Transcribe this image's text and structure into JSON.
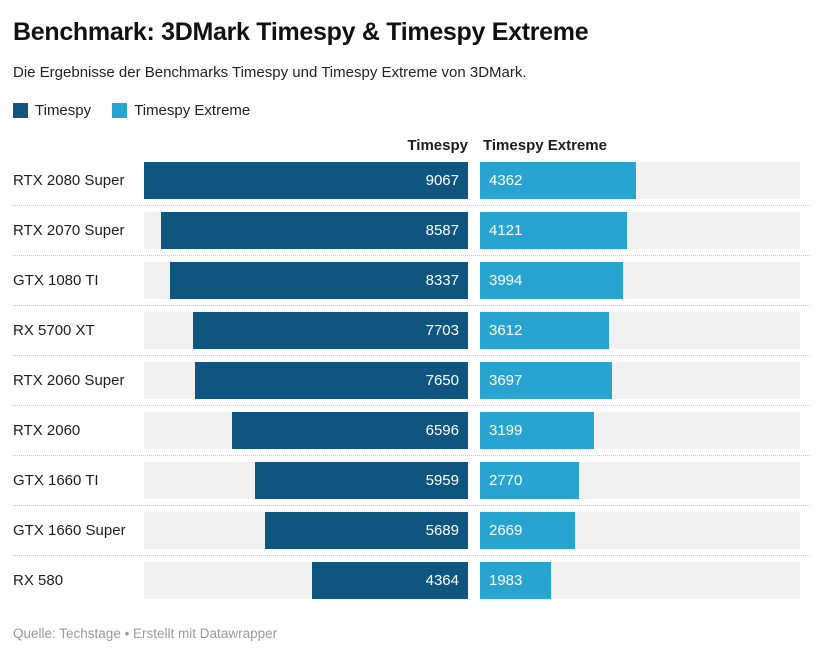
{
  "header": {
    "title": "Benchmark: 3DMark Timespy & Timespy Extreme",
    "subtitle": "Die Ergebnisse der Benchmarks Timespy und Timespy Extreme von 3DMark."
  },
  "legend": {
    "items": [
      {
        "label": "Timespy",
        "color": "#0e567f"
      },
      {
        "label": "Timespy Extreme",
        "color": "#28a4d0"
      }
    ]
  },
  "chart_data": {
    "type": "bar",
    "orientation": "horizontal",
    "columns": [
      "Timespy",
      "Timespy Extreme"
    ],
    "categories": [
      "RTX 2080 Super",
      "RTX 2070 Super",
      "GTX 1080 TI",
      "RX 5700 XT",
      "RTX 2060 Super",
      "RTX 2060",
      "GTX 1660 TI",
      "GTX 1660 Super",
      "RX 580"
    ],
    "series": [
      {
        "name": "Timespy",
        "color": "#0e567f",
        "values": [
          9067,
          8587,
          8337,
          7703,
          7650,
          6596,
          5959,
          5689,
          4364
        ]
      },
      {
        "name": "Timespy Extreme",
        "color": "#28a4d0",
        "values": [
          4362,
          4121,
          3994,
          3612,
          3697,
          3199,
          2770,
          2669,
          1983
        ]
      }
    ],
    "scale_max": 9067,
    "value_labels": "inside",
    "track_color": "#f1f1f1",
    "grid": false,
    "legend_position": "top-left"
  },
  "footer": {
    "text": "Quelle: Techstage • Erstellt mit Datawrapper"
  }
}
